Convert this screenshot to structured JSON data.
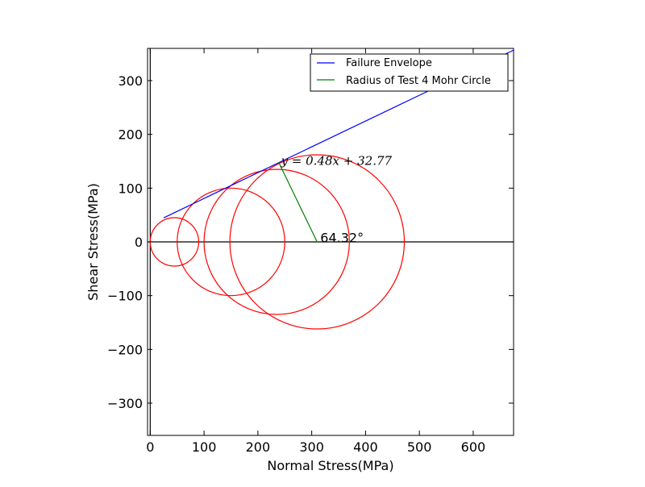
{
  "chart_data": {
    "type": "line",
    "title": "",
    "xlabel": "Normal Stress(MPa)",
    "ylabel": "Shear Stress(MPa)",
    "xlim": [
      -5,
      675
    ],
    "ylim": [
      -360,
      360
    ],
    "xticks": [
      0,
      100,
      200,
      300,
      400,
      500,
      600
    ],
    "yticks": [
      300,
      200,
      100,
      0,
      -100,
      -200,
      -300
    ],
    "xtick_labels": [
      "0",
      "100",
      "200",
      "300",
      "400",
      "500",
      "600"
    ],
    "ytick_labels": [
      "300",
      "200",
      "100",
      "0",
      "−100",
      "−200",
      "−300"
    ],
    "grid": false,
    "legend_position": "top-right",
    "series": [
      {
        "name": "Failure Envelope",
        "color": "#0000ff",
        "x": [
          25,
          675
        ],
        "y": [
          44.77,
          356.77
        ]
      },
      {
        "name": "Radius of Test 4 Mohr Circle",
        "color": "#008000",
        "x": [
          310,
          238.5
        ],
        "y": [
          0,
          148.3
        ]
      }
    ],
    "circles": [
      {
        "center": 45,
        "radius": 45,
        "color": "#ff0000"
      },
      {
        "center": 150,
        "radius": 100,
        "color": "#ff0000"
      },
      {
        "center": 235,
        "radius": 135,
        "color": "#ff0000"
      },
      {
        "center": 310,
        "radius": 162,
        "color": "#ff0000"
      }
    ],
    "annotations": [
      {
        "text": "$y = 0.48x + 32.77$",
        "display": "y = 0.48x + 32.77",
        "x": 243,
        "y": 149
      },
      {
        "text": "64.32°",
        "x": 313,
        "y": 2
      }
    ],
    "hlines": [
      {
        "y": 0,
        "color": "#000000"
      }
    ],
    "vlines": [
      {
        "x": 0,
        "color": "#000000"
      }
    ]
  }
}
